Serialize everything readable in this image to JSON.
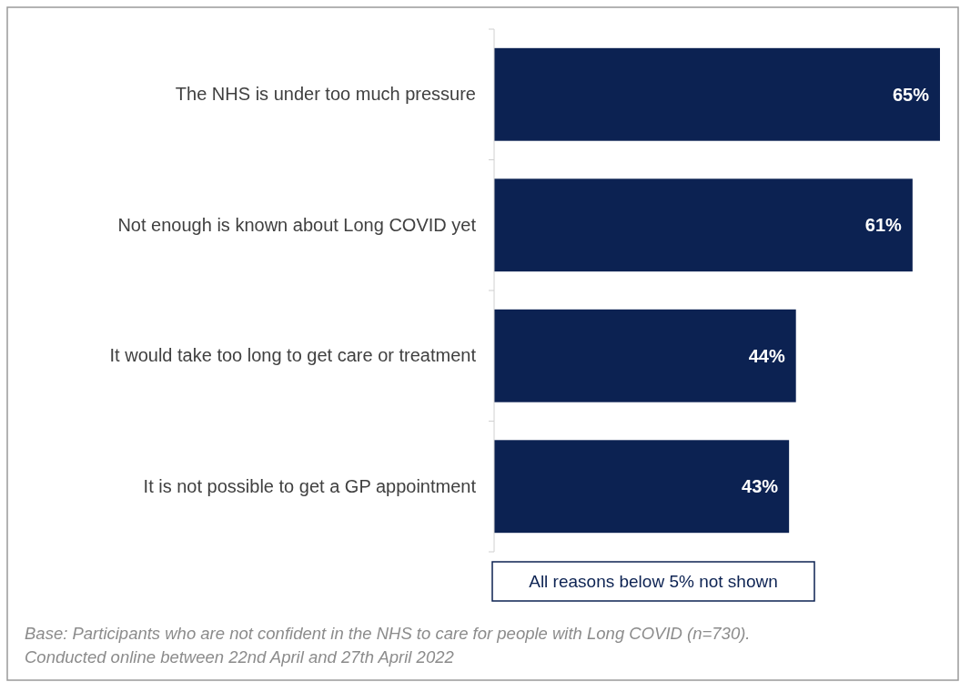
{
  "chart_data": {
    "type": "bar",
    "orientation": "horizontal",
    "categories": [
      "The NHS is under too much pressure",
      "Not enough is known about Long COVID yet",
      "It would take too long to get care or treatment",
      "It is not possible to get a GP appointment"
    ],
    "values": [
      65,
      61,
      44,
      43
    ],
    "value_labels": [
      "65%",
      "61%",
      "44%",
      "43%"
    ],
    "color": "#0c2252",
    "annotations": [
      "All reasons below 5% not shown",
      "Base: Participants who are not confident in the NHS to care for people with Long COVID (n=730).",
      "Conducted online between 22nd April and 27th April 2022"
    ]
  }
}
